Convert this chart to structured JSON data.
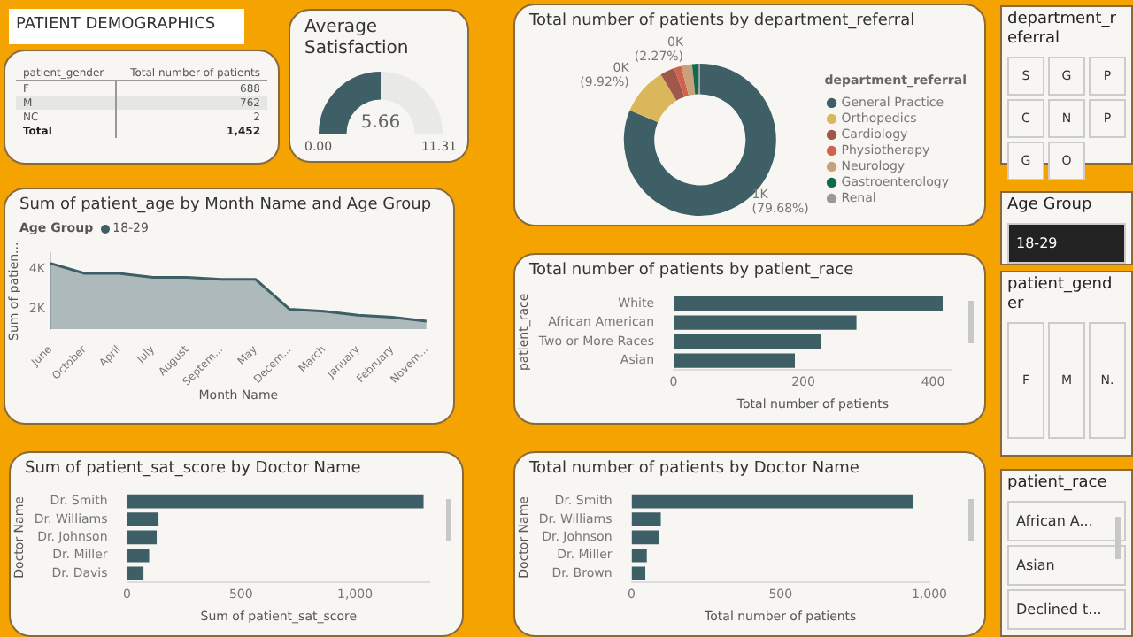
{
  "chart_data": [
    {
      "type": "other",
      "title": "PATIENT DEMOGRAPHICS",
      "xlabel": "patient_gender",
      "ylabel": "Total number of patients",
      "categories": [
        "F",
        "M",
        "NC"
      ],
      "values": [
        688,
        762,
        2
      ],
      "data_labels": true,
      "totals": [
        "1,452"
      ],
      "annotations": [
        "Total"
      ]
    },
    {
      "type": "donut",
      "title": "Average Satisfaction",
      "categories": [
        null,
        null
      ],
      "values": [
        5.66,
        5.65
      ],
      "value_labels": [
        "5.66",
        null
      ],
      "colors": [
        "#3e5f66",
        "#e9e9e6"
      ],
      "annotations": [
        "0.00",
        "11.31"
      ]
    },
    {
      "type": "donut",
      "title": "Total number of patients by department_referral",
      "categories": [
        "General Practice",
        "Orthopedics",
        "Cardiology",
        "Physiotherapy",
        "Neurology",
        "Gastroenterology",
        "Renal"
      ],
      "values": [
        79.68,
        9.92,
        3.0,
        1.5,
        2.27,
        1.2,
        0.43
      ],
      "colors": [
        "#3e5f66",
        "#d9b75a",
        "#a0574a",
        "#d06250",
        "#c9a07a",
        "#0f6b4e",
        "#999999"
      ],
      "value_labels": [
        "1K (79.68%)",
        "0K (9.92%)",
        null,
        null,
        "0K (2.27%)",
        null,
        null
      ],
      "legend": "right",
      "legend_title": "department_referral"
    },
    {
      "type": "area",
      "title": "Sum of patient_age by Month Name and Age Group",
      "xlabel": "Month Name",
      "ylabel": "Sum of patien...",
      "legend": "top left",
      "legend_title": "Age Group",
      "categories": [
        "June",
        "October",
        "April",
        "July",
        "August",
        "Septem...",
        "May",
        "Decem...",
        "March",
        "January",
        "February",
        "Novem..."
      ],
      "series": [
        {
          "name": "18-29",
          "color": "#3e5f66",
          "values": [
            4300,
            3800,
            3800,
            3600,
            3600,
            3500,
            3500,
            2000,
            1900,
            1700,
            1600,
            1400
          ]
        }
      ],
      "ylim": [
        1000,
        4800
      ],
      "yticks": [
        {
          "value": 2000,
          "label": "2K"
        },
        {
          "value": 4000,
          "label": "4K"
        }
      ]
    },
    {
      "type": "bar",
      "orientation": "horizontal",
      "title": "Total number of patients by patient_race",
      "xlabel": "Total number of patients",
      "ylabel": "patient_race",
      "categories": [
        "White",
        "African American",
        "Two or More Races",
        "Asian"
      ],
      "values": [
        415,
        282,
        227,
        187
      ],
      "color": "#3e5f66",
      "xlim": [
        0,
        430
      ],
      "xticks": [
        0,
        200,
        400
      ]
    },
    {
      "type": "bar",
      "orientation": "horizontal",
      "title": "Sum of patient_sat_score by Doctor Name",
      "xlabel": "Sum of patient_sat_score",
      "ylabel": "Doctor Name",
      "categories": [
        "Dr. Smith",
        "Dr. Williams",
        "Dr. Johnson",
        "Dr. Miller",
        "Dr. Davis"
      ],
      "values": [
        1301,
        138,
        130,
        97,
        72
      ],
      "color": "#3e5f66",
      "xlim": [
        0,
        1330
      ],
      "xticks": [
        0,
        500,
        {
          "value": 1000,
          "label": "1,000"
        }
      ]
    },
    {
      "type": "bar",
      "orientation": "horizontal",
      "title": "Total number of patients by Doctor Name",
      "xlabel": "Total number of patients",
      "ylabel": "Doctor Name",
      "categories": [
        "Dr. Smith",
        "Dr. Williams",
        "Dr. Johnson",
        "Dr. Miller",
        "Dr. Brown"
      ],
      "values": [
        945,
        98,
        93,
        51,
        46
      ],
      "color": "#3e5f66",
      "xlim": [
        0,
        1000
      ],
      "xticks": [
        0,
        500,
        {
          "value": 1000,
          "label": "1,000"
        }
      ]
    },
    {
      "type": "other",
      "title": "department_referral",
      "annotations": [
        "S",
        "G",
        "P",
        "C",
        "N",
        "P",
        "G",
        "O"
      ]
    },
    {
      "type": "other",
      "title": "Age Group",
      "annotations": [
        "18-29"
      ]
    },
    {
      "type": "other",
      "title": "patient_gender",
      "annotations": [
        "F",
        "M",
        "N."
      ]
    },
    {
      "type": "other",
      "title": "patient_race",
      "annotations": [
        "African A...",
        "Asian",
        "Declined t..."
      ]
    }
  ]
}
